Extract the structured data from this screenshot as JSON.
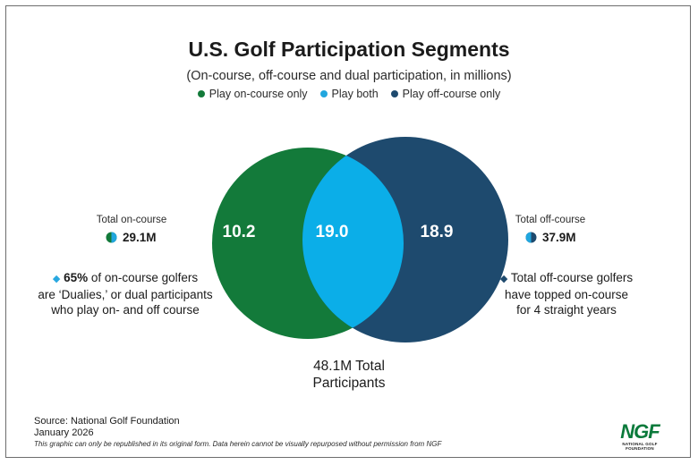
{
  "chart_data": {
    "type": "venn",
    "title": "U.S. Golf Participation Segments",
    "subtitle": "(On-course, off-course and dual participation, in millions)",
    "legend": [
      {
        "label": "Play on-course only",
        "color": "#137a3a"
      },
      {
        "label": "Play both",
        "color": "#21a6de"
      },
      {
        "label": "Play off-course only",
        "color": "#1e4a6e"
      }
    ],
    "segments": [
      {
        "name": "Play on-course only",
        "value": 10.2,
        "label": "10.2"
      },
      {
        "name": "Play both",
        "value": 19.0,
        "label": "19.0"
      },
      {
        "name": "Play off-course only",
        "value": 18.9,
        "label": "18.9"
      }
    ],
    "totals": {
      "on_course": {
        "label": "Total on-course",
        "value": 29.1,
        "display": "29.1M"
      },
      "off_course": {
        "label": "Total off-course",
        "value": 37.9,
        "display": "37.9M"
      },
      "overall_line1": "48.1M Total",
      "overall_line2": "Participants"
    },
    "annotations": {
      "left": {
        "bold": "65%",
        "line1_rest": " of on-course golfers",
        "line2": "are ‘Dualies,’ or dual participants",
        "line3": "who play on- and off course"
      },
      "right": {
        "line1": "Total off-course golfers",
        "line2": "have topped on-course",
        "line3": "for 4 straight years"
      }
    }
  },
  "colors": {
    "on_course": "#137a3a",
    "both": "#0baee8",
    "off_course": "#1e4a6e",
    "text_light": "#ffffff"
  },
  "footer": {
    "source": "Source: National Golf Foundation",
    "date": "January 2026",
    "disclaimer": "This graphic can only be republished in its original form. Data herein cannot be visually repurposed without permission from NGF"
  },
  "logo": {
    "mark": "NGF",
    "subtitle": "NATIONAL GOLF FOUNDATION"
  }
}
